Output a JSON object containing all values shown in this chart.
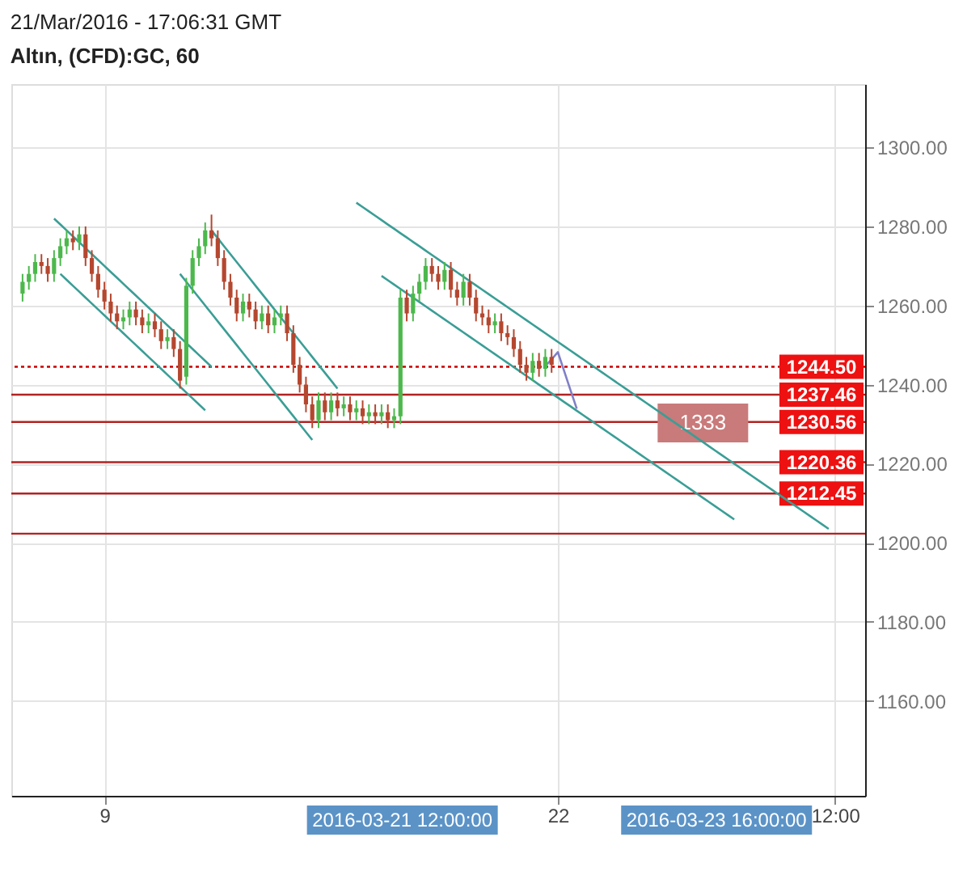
{
  "chart_data": {
    "type": "candlestick",
    "title": "21/Mar/2016 - 17:06:31 GMT",
    "subtitle": "Altın, (CFD):GC, 60",
    "categories": [
      null,
      null,
      null,
      null,
      null,
      null,
      null,
      null,
      null,
      null,
      null,
      null,
      null,
      "9",
      null,
      null,
      null,
      null,
      null,
      null,
      null,
      null,
      null,
      null,
      null,
      null,
      null,
      null,
      null,
      null,
      null,
      null,
      null,
      null,
      null,
      null,
      null,
      null,
      null,
      null,
      null,
      null,
      null,
      null,
      null,
      null,
      null,
      null,
      null,
      null,
      null,
      null,
      null,
      null,
      null,
      null,
      null,
      null,
      null,
      null,
      null,
      null,
      null,
      null,
      null,
      null,
      null,
      null,
      null,
      null,
      null,
      null,
      null,
      null,
      null,
      null,
      null,
      null,
      null,
      null,
      null,
      null,
      null,
      null,
      null,
      "22",
      null,
      null,
      null,
      null,
      null,
      null,
      null,
      null,
      null,
      null,
      null,
      null,
      null,
      null,
      null,
      null,
      null,
      null,
      null,
      null,
      null,
      null,
      null,
      null,
      null,
      null,
      null,
      null,
      null,
      null,
      null,
      null,
      null,
      null,
      null,
      null,
      null,
      null,
      null,
      null,
      null,
      null,
      null,
      "12:00",
      null,
      null,
      null
    ],
    "ohlc": [
      [
        1263,
        1268,
        1261,
        1266
      ],
      [
        1266,
        1270,
        1264,
        1268
      ],
      [
        1268,
        1273,
        1266,
        1271
      ],
      [
        1271,
        1273,
        1268,
        1270
      ],
      [
        1270,
        1272,
        1266,
        1268
      ],
      [
        1268,
        1274,
        1266,
        1272
      ],
      [
        1272,
        1277,
        1270,
        1275
      ],
      [
        1275,
        1279,
        1273,
        1277
      ],
      [
        1277,
        1279,
        1274,
        1276
      ],
      [
        1276,
        1280,
        1274,
        1278
      ],
      [
        1278,
        1280,
        1270,
        1272
      ],
      [
        1272,
        1274,
        1266,
        1268
      ],
      [
        1268,
        1270,
        1262,
        1264
      ],
      [
        1264,
        1266,
        1259,
        1261
      ],
      [
        1261,
        1263,
        1256,
        1258
      ],
      [
        1258,
        1260,
        1254,
        1256
      ],
      [
        1256,
        1259,
        1254,
        1257
      ],
      [
        1257,
        1261,
        1255,
        1259
      ],
      [
        1259,
        1261,
        1255,
        1257
      ],
      [
        1257,
        1259,
        1253,
        1255
      ],
      [
        1255,
        1258,
        1253,
        1256
      ],
      [
        1256,
        1258,
        1252,
        1254
      ],
      [
        1254,
        1256,
        1249,
        1251
      ],
      [
        1251,
        1254,
        1249,
        1252
      ],
      [
        1252,
        1254,
        1247,
        1249
      ],
      [
        1249,
        1251,
        1239,
        1241
      ],
      [
        1242,
        1267,
        1240,
        1265
      ],
      [
        1265,
        1274,
        1263,
        1272
      ],
      [
        1272,
        1277,
        1270,
        1275
      ],
      [
        1275,
        1281,
        1273,
        1279
      ],
      [
        1279,
        1283,
        1275,
        1277
      ],
      [
        1277,
        1279,
        1270,
        1272
      ],
      [
        1272,
        1274,
        1264,
        1266
      ],
      [
        1266,
        1268,
        1260,
        1262
      ],
      [
        1262,
        1264,
        1256,
        1258
      ],
      [
        1258,
        1263,
        1256,
        1261
      ],
      [
        1261,
        1263,
        1257,
        1259
      ],
      [
        1259,
        1261,
        1254,
        1256
      ],
      [
        1256,
        1260,
        1254,
        1258
      ],
      [
        1258,
        1260,
        1253,
        1255
      ],
      [
        1255,
        1259,
        1253,
        1257
      ],
      [
        1257,
        1260,
        1255,
        1258
      ],
      [
        1258,
        1260,
        1251,
        1253
      ],
      [
        1253,
        1255,
        1243,
        1245
      ],
      [
        1245,
        1247,
        1238,
        1240
      ],
      [
        1240,
        1242,
        1233,
        1235
      ],
      [
        1235,
        1237,
        1229,
        1231
      ],
      [
        1231,
        1238,
        1229,
        1236
      ],
      [
        1236,
        1238,
        1231,
        1233
      ],
      [
        1233,
        1238,
        1231,
        1236
      ],
      [
        1236,
        1238,
        1232,
        1234
      ],
      [
        1234,
        1237,
        1232,
        1235
      ],
      [
        1235,
        1237,
        1231,
        1233
      ],
      [
        1233,
        1236,
        1231,
        1234
      ],
      [
        1234,
        1236,
        1230,
        1232
      ],
      [
        1232,
        1235,
        1230,
        1233
      ],
      [
        1233,
        1235,
        1230,
        1232
      ],
      [
        1232,
        1235,
        1230,
        1233
      ],
      [
        1233,
        1235,
        1229,
        1231
      ],
      [
        1231,
        1234,
        1229,
        1232
      ],
      [
        1232,
        1264,
        1230,
        1262
      ],
      [
        1262,
        1264,
        1256,
        1258
      ],
      [
        1258,
        1265,
        1256,
        1263
      ],
      [
        1263,
        1268,
        1261,
        1266
      ],
      [
        1266,
        1272,
        1264,
        1270
      ],
      [
        1270,
        1272,
        1266,
        1268
      ],
      [
        1268,
        1270,
        1264,
        1266
      ],
      [
        1266,
        1271,
        1264,
        1269
      ],
      [
        1269,
        1271,
        1262,
        1264
      ],
      [
        1264,
        1266,
        1260,
        1262
      ],
      [
        1262,
        1268,
        1260,
        1266
      ],
      [
        1266,
        1268,
        1260,
        1262
      ],
      [
        1262,
        1264,
        1256,
        1258
      ],
      [
        1258,
        1260,
        1255,
        1257
      ],
      [
        1257,
        1259,
        1253,
        1255
      ],
      [
        1255,
        1258,
        1253,
        1256
      ],
      [
        1256,
        1258,
        1251,
        1253
      ],
      [
        1253,
        1255,
        1250,
        1252
      ],
      [
        1252,
        1254,
        1247,
        1249
      ],
      [
        1249,
        1251,
        1243,
        1245
      ],
      [
        1245,
        1247,
        1241,
        1243
      ],
      [
        1243,
        1248,
        1241,
        1246
      ],
      [
        1246,
        1248,
        1242,
        1244
      ],
      [
        1244,
        1249,
        1242,
        1247
      ],
      [
        1247,
        1249,
        1243,
        1245
      ],
      null,
      null,
      null,
      null,
      null,
      null,
      null,
      null,
      null,
      null,
      null,
      null,
      null,
      null,
      null,
      null,
      null,
      null,
      null,
      null,
      null,
      null,
      null,
      null,
      null,
      null,
      null,
      null,
      null,
      null,
      null,
      null,
      null,
      null,
      null,
      null,
      null,
      null,
      null,
      null,
      null,
      null,
      null,
      null,
      null,
      null,
      null,
      null
    ],
    "colors": [
      "#4cb84c",
      "#4cb84c",
      "#4cb84c",
      "#b5472f",
      "#b5472f",
      "#4cb84c",
      "#4cb84c",
      "#4cb84c",
      "#b5472f",
      "#4cb84c",
      "#b5472f",
      "#b5472f",
      "#b5472f",
      "#b5472f",
      "#b5472f",
      "#b5472f",
      "#4cb84c",
      "#4cb84c",
      "#b5472f",
      "#b5472f",
      "#4cb84c",
      "#b5472f",
      "#b5472f",
      "#4cb84c",
      "#b5472f",
      "#b5472f",
      "#4cb84c",
      "#4cb84c",
      "#4cb84c",
      "#4cb84c",
      "#b5472f",
      "#b5472f",
      "#b5472f",
      "#b5472f",
      "#b5472f",
      "#4cb84c",
      "#b5472f",
      "#b5472f",
      "#4cb84c",
      "#b5472f",
      "#4cb84c",
      "#4cb84c",
      "#b5472f",
      "#b5472f",
      "#b5472f",
      "#b5472f",
      "#b5472f",
      "#4cb84c",
      "#b5472f",
      "#4cb84c",
      "#b5472f",
      "#4cb84c",
      "#b5472f",
      "#4cb84c",
      "#b5472f",
      "#4cb84c",
      "#b5472f",
      "#4cb84c",
      "#b5472f",
      "#4cb84c",
      "#4cb84c",
      "#b5472f",
      "#4cb84c",
      "#4cb84c",
      "#4cb84c",
      "#b5472f",
      "#b5472f",
      "#4cb84c",
      "#b5472f",
      "#b5472f",
      "#4cb84c",
      "#b5472f",
      "#b5472f",
      "#b5472f",
      "#b5472f",
      "#4cb84c",
      "#b5472f",
      "#b5472f",
      "#b5472f",
      "#b5472f",
      "#b5472f",
      "#4cb84c",
      "#b5472f",
      "#4cb84c",
      "#b5472f",
      null,
      null,
      null,
      null,
      null,
      null,
      null,
      null,
      null,
      null,
      null,
      null,
      null,
      null,
      null,
      null,
      null,
      null,
      null,
      null,
      null,
      null,
      null,
      null,
      null,
      null,
      null,
      null,
      null,
      null,
      null,
      null,
      null,
      null,
      null,
      null,
      null,
      null,
      null,
      null,
      null,
      null,
      null,
      null,
      null,
      null,
      null,
      null
    ],
    "series": [
      {
        "type": "line",
        "color": "#3a9e96",
        "values": [
          null,
          null,
          null,
          null,
          null,
          1282,
          1280.5,
          1279,
          1277.5,
          1276,
          1274.5,
          1273,
          1271.5,
          1270,
          1268.5,
          1267,
          1265.5,
          1264,
          1262.5,
          1261,
          1259.5,
          1258,
          1256.5,
          1255,
          1253.5,
          1252,
          1250.5,
          1249,
          1247.5,
          1246,
          1244.5,
          null,
          null,
          null,
          null,
          null,
          null,
          null,
          null,
          null,
          null,
          null,
          null,
          null,
          null,
          null,
          null,
          null,
          null,
          null,
          null,
          null,
          null,
          null,
          null,
          null,
          null,
          null,
          null,
          null,
          null,
          null,
          null,
          null,
          null,
          null,
          null,
          null,
          null,
          null,
          null,
          null,
          null,
          null,
          null,
          null,
          null,
          null,
          null,
          null,
          null,
          null,
          null,
          null,
          null,
          null,
          null,
          null,
          null,
          null,
          null,
          null,
          null,
          null,
          null,
          null,
          null,
          null,
          null,
          null,
          null,
          null,
          null,
          null,
          null,
          null,
          null,
          null,
          null,
          null,
          null,
          null,
          null,
          null,
          null,
          null,
          null,
          null,
          null,
          null,
          null,
          null,
          null,
          null,
          null,
          null,
          null,
          null,
          null,
          null,
          null,
          null,
          null
        ]
      },
      {
        "type": "line",
        "color": "#3a9e96",
        "values": [
          null,
          null,
          null,
          null,
          null,
          null,
          1268,
          1266.5,
          1265,
          1263.5,
          1262,
          1260.5,
          1259,
          1257.5,
          1256,
          1254.5,
          1253,
          1251.5,
          1250,
          1248.5,
          1247,
          1245.5,
          1244,
          1242.5,
          1241,
          1239.5,
          1238,
          1236.5,
          1235,
          1233.5,
          null,
          null,
          null,
          null,
          null,
          null,
          null,
          null,
          null,
          null,
          null,
          null,
          null,
          null,
          null,
          null,
          null,
          null,
          null,
          null,
          null,
          null,
          null,
          null,
          null,
          null,
          null,
          null,
          null,
          null,
          null,
          null,
          null,
          null,
          null,
          null,
          null,
          null,
          null,
          null,
          null,
          null,
          null,
          null,
          null,
          null,
          null,
          null,
          null,
          null,
          null,
          null,
          null,
          null,
          null,
          null,
          null,
          null,
          null,
          null,
          null,
          null,
          null,
          null,
          null,
          null,
          null,
          null,
          null,
          null,
          null,
          null,
          null,
          null,
          null,
          null,
          null,
          null,
          null,
          null,
          null,
          null,
          null,
          null,
          null,
          null,
          null,
          null,
          null,
          null,
          null,
          null,
          null,
          null,
          null,
          null,
          null,
          null,
          null,
          null,
          null,
          null,
          null
        ]
      },
      {
        "type": "line",
        "color": "#3a9e96",
        "values": [
          null,
          null,
          null,
          null,
          null,
          null,
          null,
          null,
          null,
          null,
          null,
          null,
          null,
          null,
          null,
          null,
          null,
          null,
          null,
          null,
          null,
          null,
          null,
          null,
          null,
          null,
          null,
          null,
          null,
          null,
          1279,
          1277,
          1275,
          1273,
          1271,
          1269,
          1267,
          1265,
          1263,
          1261,
          1259,
          1257,
          1255,
          1253,
          1251,
          1249,
          1247,
          1245,
          1243,
          1241,
          1239,
          null,
          null,
          null,
          null,
          null,
          null,
          null,
          null,
          null,
          null,
          null,
          null,
          null,
          null,
          null,
          null,
          null,
          null,
          null,
          null,
          null,
          null,
          null,
          null,
          null,
          null,
          null,
          null,
          null,
          null,
          null,
          null,
          null,
          null,
          null,
          null,
          null,
          null,
          null,
          null,
          null,
          null,
          null,
          null,
          null,
          null,
          null,
          null,
          null,
          null,
          null,
          null,
          null,
          null,
          null,
          null,
          null,
          null,
          null,
          null,
          null,
          null,
          null,
          null,
          null,
          null,
          null,
          null,
          null,
          null,
          null,
          null,
          null,
          null,
          null,
          null,
          null,
          null,
          null,
          null,
          null,
          null
        ]
      },
      {
        "type": "line",
        "color": "#3a9e96",
        "values": [
          null,
          null,
          null,
          null,
          null,
          null,
          null,
          null,
          null,
          null,
          null,
          null,
          null,
          null,
          null,
          null,
          null,
          null,
          null,
          null,
          null,
          null,
          null,
          null,
          null,
          1268,
          1266,
          1264,
          1262,
          1260,
          1258,
          1256,
          1254,
          1252,
          1250,
          1248,
          1246,
          1244,
          1242,
          1240,
          1238,
          1236,
          1234,
          1232,
          1230,
          1228,
          1226,
          null,
          null,
          null,
          null,
          null,
          null,
          null,
          null,
          null,
          null,
          null,
          null,
          null,
          null,
          null,
          null,
          null,
          null,
          null,
          null,
          null,
          null,
          null,
          null,
          null,
          null,
          null,
          null,
          null,
          null,
          null,
          null,
          null,
          null,
          null,
          null,
          null,
          null,
          null,
          null,
          null,
          null,
          null,
          null,
          null,
          null,
          null,
          null,
          null,
          null,
          null,
          null,
          null,
          null,
          null,
          null,
          null,
          null,
          null,
          null,
          null,
          null,
          null,
          null,
          null,
          null,
          null,
          null,
          null,
          null,
          null,
          null,
          null,
          null,
          null,
          null,
          null,
          null,
          null,
          null,
          null,
          null,
          null,
          null,
          null,
          null
        ]
      },
      {
        "type": "line",
        "color": "#3a9e96",
        "values": [
          null,
          null,
          null,
          null,
          null,
          null,
          null,
          null,
          null,
          null,
          null,
          null,
          null,
          null,
          null,
          null,
          null,
          null,
          null,
          null,
          null,
          null,
          null,
          null,
          null,
          null,
          null,
          null,
          null,
          null,
          null,
          null,
          null,
          null,
          null,
          null,
          null,
          null,
          null,
          null,
          null,
          null,
          null,
          null,
          null,
          null,
          null,
          null,
          null,
          null,
          null,
          null,
          null,
          1286,
          1284.9,
          1283.8,
          1282.7,
          1281.6,
          1280.5,
          1279.4,
          1278.3,
          1277.2,
          1276.1,
          1275,
          1273.9,
          1272.8,
          1271.7,
          1270.6,
          1269.5,
          1268.4,
          1267.3,
          1266.2,
          1265.1,
          1264,
          1262.9,
          1261.8,
          1260.7,
          1259.6,
          1258.5,
          1257.4,
          1256.3,
          1255.2,
          1254.1,
          1253,
          1251.9,
          1250.8,
          1249.7,
          1248.6,
          1247.5,
          1246.4,
          1245.3,
          1244.2,
          1243.1,
          1242,
          1240.9,
          1239.8,
          1238.7,
          1237.6,
          1236.5,
          1235.4,
          1234.3,
          1233.2,
          1232.1,
          1231,
          1229.9,
          1228.8,
          1227.7,
          1226.6,
          1225.5,
          1224.4,
          1223.3,
          1222.2,
          1221.1,
          1220,
          1218.9,
          1217.8,
          1216.7,
          1215.6,
          1214.5,
          1213.4,
          1212.3,
          1211.2,
          1210.1,
          1209,
          1207.9,
          1206.8,
          1205.7,
          1204.6,
          1203.5,
          null,
          null,
          null,
          null
        ]
      },
      {
        "type": "line",
        "color": "#3a9e96",
        "values": [
          null,
          null,
          null,
          null,
          null,
          null,
          null,
          null,
          null,
          null,
          null,
          null,
          null,
          null,
          null,
          null,
          null,
          null,
          null,
          null,
          null,
          null,
          null,
          null,
          null,
          null,
          null,
          null,
          null,
          null,
          null,
          null,
          null,
          null,
          null,
          null,
          null,
          null,
          null,
          null,
          null,
          null,
          null,
          null,
          null,
          null,
          null,
          null,
          null,
          null,
          null,
          null,
          null,
          null,
          null,
          null,
          null,
          1267.5,
          1266.4,
          1265.3,
          1264.2,
          1263.1,
          1262,
          1260.9,
          1259.8,
          1258.7,
          1257.6,
          1256.5,
          1255.4,
          1254.3,
          1253.2,
          1252.1,
          1251,
          1249.9,
          1248.8,
          1247.7,
          1246.6,
          1245.5,
          1244.4,
          1243.3,
          1242.2,
          1241.1,
          1240,
          1238.9,
          1237.8,
          1236.7,
          1235.6,
          1234.5,
          1233.4,
          1232.3,
          1231.2,
          1230.1,
          1229,
          1227.9,
          1226.8,
          1225.7,
          1224.6,
          1223.5,
          1222.4,
          1221.3,
          1220.2,
          1219.1,
          1218,
          1216.9,
          1215.8,
          1214.7,
          1213.6,
          1212.5,
          1211.4,
          1210.3,
          1209.2,
          1208.1,
          1207,
          1205.9,
          null,
          null,
          null,
          null,
          null,
          null,
          null,
          null,
          null,
          null,
          null,
          null,
          null,
          null,
          null,
          null,
          null,
          null,
          null
        ]
      },
      {
        "type": "line",
        "color": "#8080c8",
        "values": [
          null,
          null,
          null,
          null,
          null,
          null,
          null,
          null,
          null,
          null,
          null,
          null,
          null,
          null,
          null,
          null,
          null,
          null,
          null,
          null,
          null,
          null,
          null,
          null,
          null,
          null,
          null,
          null,
          null,
          null,
          null,
          null,
          null,
          null,
          null,
          null,
          null,
          null,
          null,
          null,
          null,
          null,
          null,
          null,
          null,
          null,
          null,
          null,
          null,
          null,
          null,
          null,
          null,
          null,
          null,
          null,
          null,
          null,
          null,
          null,
          null,
          null,
          null,
          null,
          null,
          null,
          null,
          null,
          null,
          null,
          null,
          null,
          null,
          null,
          null,
          null,
          null,
          null,
          null,
          null,
          null,
          null,
          null,
          1244.7,
          1246.4,
          1248.2,
          1243.4,
          1238.6,
          1233.9,
          null,
          null,
          null,
          null,
          null,
          null,
          null,
          null,
          null,
          null,
          null,
          null,
          null,
          null,
          null,
          null,
          null,
          null,
          null,
          null,
          null,
          null,
          null,
          null,
          null,
          null,
          null,
          null,
          null,
          null,
          null,
          null,
          null,
          null,
          null,
          null,
          null,
          null,
          null,
          null,
          null,
          null,
          null,
          null
        ]
      }
    ],
    "ref_lines": [
      {
        "axis": "y",
        "value": 1244.5,
        "label": "1244.50",
        "color": "#cc0000",
        "line_style": "dotted"
      },
      {
        "axis": "y",
        "value": 1237.46,
        "label": "1237.46",
        "color": "#b22222",
        "line_style": "solid"
      },
      {
        "axis": "y",
        "value": 1230.56,
        "label": "1230.56",
        "color": "#b22222",
        "line_style": "solid"
      },
      {
        "axis": "y",
        "value": 1220.36,
        "label": "1220.36",
        "color": "#b22222",
        "line_style": "solid"
      },
      {
        "axis": "y",
        "value": 1212.45,
        "label": "1212.45",
        "color": "#b22222",
        "line_style": "solid"
      },
      {
        "axis": "y",
        "value": 1202.3,
        "label": null,
        "color": "#b22222",
        "line_style": "solid"
      }
    ],
    "annotations": [
      "1333",
      "2016-03-21 12:00:00",
      "2016-03-23 16:00:00"
    ],
    "ylim": [
      1136,
      1316
    ],
    "yticks": [
      {
        "value": 1160,
        "label": "1160.00"
      },
      {
        "value": 1180,
        "label": "1180.00"
      },
      {
        "value": 1200,
        "label": "1200.00"
      },
      {
        "value": 1220,
        "label": "1220.00"
      },
      {
        "value": 1240,
        "label": "1240.00"
      },
      {
        "value": 1260,
        "label": "1260.00"
      },
      {
        "value": 1280,
        "label": "1280.00"
      },
      {
        "value": 1300,
        "label": "1300.00"
      }
    ],
    "grid": true
  }
}
